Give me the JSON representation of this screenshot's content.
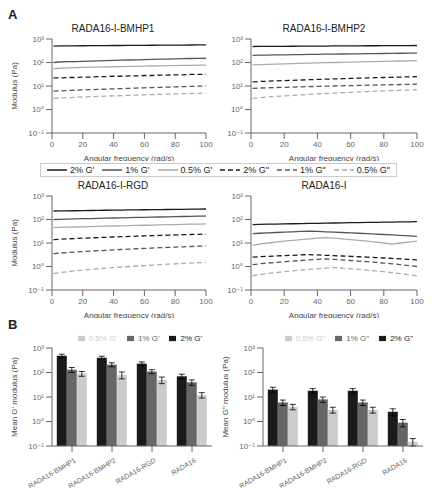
{
  "chart_data": [
    {
      "type": "line",
      "title": "RADA16-I-BMHP1",
      "annotations": [
        "A"
      ],
      "xlabel": "Angular frequency (rad/s)",
      "ylabel": "Modulus (Pa)",
      "log": "y",
      "grid": false,
      "legend": "center",
      "xlim": [
        0,
        100
      ],
      "xticks": [
        0,
        20,
        40,
        60,
        80,
        100
      ],
      "ylim": [
        0.1,
        1000
      ],
      "yticks": [
        {
          "value": 0.1,
          "label": "10⁻¹"
        },
        {
          "value": 1,
          "label": "10⁰"
        },
        {
          "value": 10,
          "label": "10¹"
        },
        {
          "value": 100,
          "label": "10²"
        },
        {
          "value": 1000,
          "label": "10³"
        }
      ],
      "x": [
        1,
        5,
        10,
        15,
        20,
        25,
        30,
        35,
        40,
        45,
        50,
        55,
        60,
        65,
        70,
        75,
        80,
        85,
        90,
        95,
        100
      ],
      "series": [
        {
          "name": "2% G'",
          "color": "#1a1a1a",
          "line_style": "solid",
          "values": [
            500,
            505,
            508,
            510,
            515,
            518,
            520,
            525,
            528,
            530,
            535,
            538,
            540,
            542,
            545,
            548,
            550,
            552,
            555,
            558,
            560
          ]
        },
        {
          "name": "1% G'",
          "color": "#555555",
          "line_style": "solid",
          "values": [
            100,
            105,
            108,
            110,
            112,
            115,
            118,
            120,
            122,
            125,
            128,
            130,
            132,
            135,
            138,
            140,
            142,
            145,
            148,
            150,
            152
          ]
        },
        {
          "name": "0.5% G'",
          "color": "#aaaaaa",
          "line_style": "solid",
          "values": [
            55,
            57,
            59,
            60,
            62,
            63,
            64,
            65,
            66,
            67,
            68,
            69,
            70,
            71,
            72,
            73,
            74,
            75,
            76,
            77,
            78
          ]
        },
        {
          "name": "2% G\"",
          "color": "#1a1a1a",
          "line_style": "dashed",
          "values": [
            22,
            22,
            23,
            23,
            24,
            24,
            25,
            25,
            26,
            26,
            27,
            27,
            28,
            28,
            29,
            29,
            30,
            30,
            31,
            31,
            32
          ]
        },
        {
          "name": "1% G\"",
          "color": "#555555",
          "line_style": "dashed",
          "values": [
            6,
            6.2,
            6.4,
            6.6,
            6.8,
            7.0,
            7.2,
            7.4,
            7.6,
            7.8,
            8.0,
            8.2,
            8.4,
            8.6,
            8.8,
            9.0,
            9.2,
            9.4,
            9.6,
            9.8,
            10.0
          ]
        },
        {
          "name": "0.5% G\"",
          "color": "#aaaaaa",
          "line_style": "dashed",
          "values": [
            3,
            3.1,
            3.2,
            3.3,
            3.4,
            3.5,
            3.6,
            3.7,
            3.8,
            3.9,
            4.0,
            4.1,
            4.2,
            4.3,
            4.4,
            4.5,
            4.6,
            4.7,
            4.8,
            4.9,
            5.0
          ]
        }
      ]
    },
    {
      "type": "line",
      "title": "RADA16-I-BMHP2",
      "xlabel": "Angular frequency (rad/s)",
      "log": "y",
      "grid": false,
      "xlim": [
        0,
        100
      ],
      "xticks": [
        0,
        20,
        40,
        60,
        80,
        100
      ],
      "ylim": [
        0.1,
        1000
      ],
      "yticks": [
        {
          "value": 0.1,
          "label": "10⁻¹"
        },
        {
          "value": 1,
          "label": "10⁰"
        },
        {
          "value": 10,
          "label": "10¹"
        },
        {
          "value": 100,
          "label": "10²"
        },
        {
          "value": 1000,
          "label": "10³"
        }
      ],
      "x": [
        1,
        5,
        10,
        15,
        20,
        25,
        30,
        35,
        40,
        45,
        50,
        55,
        60,
        65,
        70,
        75,
        80,
        85,
        90,
        95,
        100
      ],
      "series": [
        {
          "name": "2% G'",
          "color": "#1a1a1a",
          "line_style": "solid",
          "values": [
            480,
            482,
            484,
            486,
            490,
            492,
            495,
            497,
            500,
            502,
            505,
            507,
            510,
            512,
            515,
            517,
            520,
            522,
            525,
            527,
            530
          ]
        },
        {
          "name": "1% G'",
          "color": "#555555",
          "line_style": "solid",
          "values": [
            200,
            205,
            208,
            210,
            213,
            215,
            218,
            220,
            222,
            225,
            228,
            230,
            232,
            235,
            238,
            240,
            242,
            245,
            248,
            250,
            252
          ]
        },
        {
          "name": "0.5% G'",
          "color": "#aaaaaa",
          "line_style": "solid",
          "values": [
            80,
            82,
            84,
            86,
            88,
            90,
            92,
            94,
            96,
            98,
            100,
            102,
            104,
            106,
            108,
            110,
            112,
            114,
            116,
            118,
            120
          ]
        },
        {
          "name": "2% G\"",
          "color": "#1a1a1a",
          "line_style": "dashed",
          "values": [
            15,
            15.5,
            16,
            16.5,
            17,
            17.5,
            18,
            18.5,
            19,
            19.5,
            20,
            20.5,
            21,
            21.5,
            22,
            22.5,
            23,
            23.5,
            24,
            24.5,
            25
          ]
        },
        {
          "name": "1% G\"",
          "color": "#555555",
          "line_style": "dashed",
          "values": [
            8,
            8.2,
            8.4,
            8.6,
            8.8,
            9.0,
            9.2,
            9.4,
            9.6,
            9.8,
            10,
            10.2,
            10.4,
            10.6,
            10.8,
            11,
            11.2,
            11.4,
            11.6,
            11.8,
            12
          ]
        },
        {
          "name": "0.5% G\"",
          "color": "#aaaaaa",
          "line_style": "dashed",
          "values": [
            3,
            3.2,
            3.4,
            3.6,
            3.8,
            4.0,
            4.2,
            4.4,
            4.6,
            4.8,
            5.0,
            5.2,
            5.4,
            5.6,
            5.8,
            6.0,
            6.2,
            6.4,
            6.6,
            6.8,
            7.0
          ]
        }
      ]
    },
    {
      "type": "line",
      "title": "RADA16-I-RGD",
      "xlabel": "Angular frequency (rad/s)",
      "ylabel": "Modulus (Pa)",
      "log": "y",
      "grid": false,
      "xlim": [
        0,
        100
      ],
      "xticks": [
        0,
        20,
        40,
        60,
        80,
        100
      ],
      "ylim": [
        0.1,
        1000
      ],
      "yticks": [
        {
          "value": 0.1,
          "label": "10⁻¹"
        },
        {
          "value": 1,
          "label": "10⁰"
        },
        {
          "value": 10,
          "label": "10¹"
        },
        {
          "value": 100,
          "label": "10²"
        },
        {
          "value": 1000,
          "label": "10³"
        }
      ],
      "x": [
        1,
        5,
        10,
        15,
        20,
        25,
        30,
        35,
        40,
        45,
        50,
        55,
        60,
        65,
        70,
        75,
        80,
        85,
        90,
        95,
        100
      ],
      "series": [
        {
          "name": "2% G'",
          "color": "#1a1a1a",
          "line_style": "solid",
          "values": [
            230,
            232,
            234,
            236,
            240,
            242,
            245,
            247,
            250,
            252,
            255,
            257,
            260,
            262,
            265,
            267,
            270,
            272,
            275,
            277,
            280
          ]
        },
        {
          "name": "1% G'",
          "color": "#555555",
          "line_style": "solid",
          "values": [
            100,
            102,
            104,
            106,
            108,
            110,
            112,
            114,
            116,
            118,
            120,
            122,
            124,
            126,
            128,
            130,
            132,
            134,
            136,
            138,
            140
          ]
        },
        {
          "name": "0.5% G'",
          "color": "#aaaaaa",
          "line_style": "solid",
          "values": [
            45,
            46,
            47,
            48,
            49,
            50,
            51,
            52,
            53,
            54,
            55,
            56,
            57,
            58,
            59,
            60,
            61,
            62,
            63,
            64,
            65
          ]
        },
        {
          "name": "2% G\"",
          "color": "#1a1a1a",
          "line_style": "dashed",
          "values": [
            14,
            14.5,
            15,
            15.5,
            16,
            16.5,
            17,
            17.5,
            18,
            18.5,
            19,
            19.5,
            20,
            20.5,
            21,
            21.5,
            22,
            22.5,
            23,
            23.5,
            24
          ]
        },
        {
          "name": "1% G\"",
          "color": "#555555",
          "line_style": "dashed",
          "values": [
            3.5,
            3.7,
            3.9,
            4.1,
            4.3,
            4.5,
            4.7,
            4.9,
            5.1,
            5.3,
            5.5,
            5.7,
            5.9,
            6.1,
            6.3,
            6.5,
            6.7,
            6.9,
            7.1,
            7.3,
            7.5
          ]
        },
        {
          "name": "0.5% G\"",
          "color": "#aaaaaa",
          "line_style": "dashed",
          "values": [
            0.5,
            0.55,
            0.6,
            0.65,
            0.7,
            0.75,
            0.8,
            0.85,
            0.9,
            0.95,
            1.0,
            1.05,
            1.1,
            1.15,
            1.2,
            1.25,
            1.3,
            1.35,
            1.4,
            1.45,
            1.5
          ]
        }
      ]
    },
    {
      "type": "line",
      "title": "RADA16-I",
      "xlabel": "Angular frequency (rad/s)",
      "log": "y",
      "grid": false,
      "xlim": [
        0,
        100
      ],
      "xticks": [
        0,
        20,
        40,
        60,
        80,
        100
      ],
      "ylim": [
        0.1,
        1000
      ],
      "yticks": [
        {
          "value": 0.1,
          "label": "10⁻¹"
        },
        {
          "value": 1,
          "label": "10⁰"
        },
        {
          "value": 10,
          "label": "10¹"
        },
        {
          "value": 100,
          "label": "10²"
        },
        {
          "value": 1000,
          "label": "10³"
        }
      ],
      "x": [
        1,
        5,
        10,
        15,
        20,
        25,
        30,
        35,
        40,
        45,
        50,
        55,
        60,
        65,
        70,
        75,
        80,
        85,
        90,
        95,
        100
      ],
      "series": [
        {
          "name": "2% G'",
          "color": "#1a1a1a",
          "line_style": "solid",
          "values": [
            60,
            62,
            63,
            64,
            65,
            66,
            67,
            68,
            69,
            70,
            71,
            72,
            73,
            74,
            75,
            76,
            77,
            78,
            79,
            80,
            81
          ]
        },
        {
          "name": "1% G'",
          "color": "#555555",
          "line_style": "solid",
          "values": [
            25,
            26,
            27,
            28,
            29,
            30,
            31,
            32,
            31,
            30,
            29,
            28,
            27,
            26,
            25,
            24,
            23,
            22,
            21,
            20,
            19
          ]
        },
        {
          "name": "0.5% G'",
          "color": "#aaaaaa",
          "line_style": "solid",
          "values": [
            8,
            9,
            10,
            11,
            12,
            13,
            14,
            15,
            16,
            17,
            16,
            15,
            14,
            13,
            12,
            11,
            10,
            9,
            10,
            11,
            12
          ]
        },
        {
          "name": "2% G\"",
          "color": "#1a1a1a",
          "line_style": "dashed",
          "values": [
            2.5,
            2.6,
            2.7,
            2.8,
            2.9,
            3.0,
            3.1,
            3.2,
            3.1,
            3.0,
            2.9,
            2.8,
            2.7,
            2.6,
            2.5,
            2.4,
            2.3,
            2.2,
            2.1,
            2.0,
            1.9
          ]
        },
        {
          "name": "1% G\"",
          "color": "#555555",
          "line_style": "dashed",
          "values": [
            1.2,
            1.3,
            1.4,
            1.5,
            1.6,
            1.7,
            1.8,
            1.9,
            2.0,
            2.1,
            2.0,
            1.9,
            1.8,
            1.7,
            1.6,
            1.5,
            1.4,
            1.3,
            1.2,
            1.1,
            1.0
          ]
        },
        {
          "name": "0.5% G\"",
          "color": "#aaaaaa",
          "line_style": "dashed",
          "values": [
            0.4,
            0.45,
            0.5,
            0.55,
            0.6,
            0.65,
            0.7,
            0.75,
            0.8,
            0.85,
            0.9,
            0.85,
            0.8,
            0.75,
            0.7,
            0.65,
            0.6,
            0.55,
            0.5,
            0.45,
            0.4
          ]
        }
      ]
    },
    {
      "type": "bar",
      "annotations": [
        "B"
      ],
      "ylabel": "Mean G' modulus (Pa)",
      "log": "y",
      "grid": false,
      "legend": "upper right",
      "ylim": [
        0.1,
        1000
      ],
      "yticks": [
        {
          "value": 0.1,
          "label": "10⁻¹"
        },
        {
          "value": 1,
          "label": "10⁰"
        },
        {
          "value": 10,
          "label": "10¹"
        },
        {
          "value": 100,
          "label": "10²"
        },
        {
          "value": 1000,
          "label": "10³"
        }
      ],
      "categories": [
        "RADA16-BMHP1",
        "RADA16-BMHP2",
        "RADA16-RGD",
        "RADA16"
      ],
      "series": [
        {
          "name": "2% G'",
          "color": "#1a1a1a",
          "values": [
            480,
            400,
            230,
            70
          ],
          "errors": [
            80,
            60,
            40,
            15
          ]
        },
        {
          "name": "1% G'",
          "color": "#666666",
          "values": [
            130,
            210,
            110,
            40
          ],
          "errors": [
            30,
            40,
            20,
            10
          ]
        },
        {
          "name": "0.5% G'",
          "color": "#cccccc",
          "values": [
            90,
            80,
            50,
            12
          ],
          "errors": [
            20,
            25,
            15,
            3
          ]
        }
      ]
    },
    {
      "type": "bar",
      "ylabel": "Mean G\" modulus (Pa)",
      "log": "y",
      "grid": false,
      "legend": "upper right",
      "ylim": [
        0.1,
        1000
      ],
      "yticks": [
        {
          "value": 0.1,
          "label": "10⁻¹"
        },
        {
          "value": 1,
          "label": "10⁰"
        },
        {
          "value": 10,
          "label": "10¹"
        },
        {
          "value": 100,
          "label": "10²"
        },
        {
          "value": 1000,
          "label": "10³"
        }
      ],
      "categories": [
        "RADA16-BMHP1",
        "RADA16-BMHP2",
        "RADA16-RGD",
        "RADA16"
      ],
      "series": [
        {
          "name": "2% G\"",
          "color": "#1a1a1a",
          "values": [
            20,
            18,
            18,
            2.5
          ],
          "errors": [
            5,
            4,
            4,
            0.8
          ]
        },
        {
          "name": "1% G\"",
          "color": "#666666",
          "values": [
            6,
            8,
            6,
            0.9
          ],
          "errors": [
            1.5,
            2,
            1.5,
            0.3
          ]
        },
        {
          "name": "0.5% G\"",
          "color": "#cccccc",
          "values": [
            4,
            3,
            3,
            0.15
          ],
          "errors": [
            1,
            0.8,
            0.8,
            0.05
          ]
        }
      ]
    }
  ]
}
